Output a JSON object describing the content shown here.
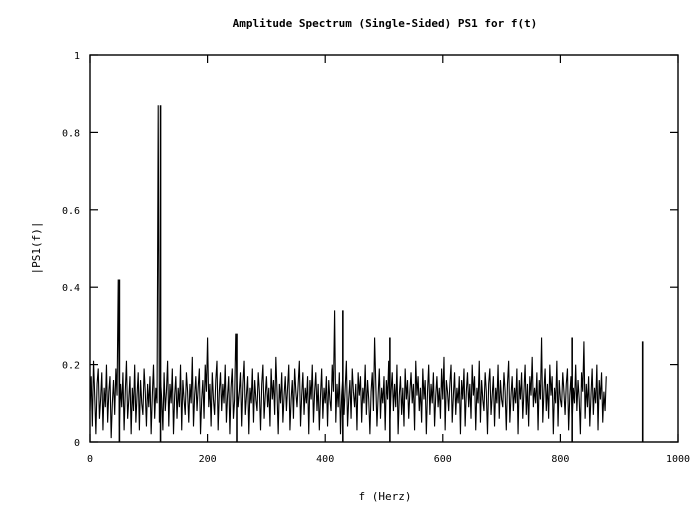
{
  "chart_data": {
    "type": "line",
    "title": "Amplitude Spectrum (Single-Sided) PS1 for f(t)",
    "xlabel": "f (Herz)",
    "ylabel": "|PS1(f)|",
    "xlim": [
      0,
      1000
    ],
    "ylim": [
      0,
      1
    ],
    "xticks": [
      0,
      200,
      400,
      600,
      800,
      1000
    ],
    "yticks": [
      0,
      0.2,
      0.4,
      0.6,
      0.8,
      1
    ],
    "xtick_labels": [
      "0",
      "200",
      "400",
      "600",
      "800",
      "1000"
    ],
    "ytick_labels": [
      "0",
      "0.2",
      "0.4",
      "0.6",
      "0.8",
      "1"
    ],
    "grid": false,
    "legend": "none",
    "series": [
      {
        "x_start": 0,
        "x_step": 2,
        "peaks": [
          {
            "x": 50,
            "y": 0.42
          },
          {
            "x": 120,
            "y": 0.87
          },
          {
            "x": 250,
            "y": 0.28
          },
          {
            "x": 430,
            "y": 0.34
          },
          {
            "x": 510,
            "y": 0.27
          },
          {
            "x": 820,
            "y": 0.27
          },
          {
            "x": 940,
            "y": 0.26
          }
        ],
        "values": [
          0.08,
          0.17,
          0.04,
          0.21,
          0.12,
          0.02,
          0.15,
          0.19,
          0.06,
          0.11,
          0.18,
          0.03,
          0.14,
          0.09,
          0.2,
          0.05,
          0.13,
          0.17,
          0.01,
          0.1,
          0.16,
          0.07,
          0.19,
          0.12,
          0.42,
          0.04,
          0.15,
          0.09,
          0.18,
          0.03,
          0.13,
          0.21,
          0.06,
          0.11,
          0.17,
          0.02,
          0.14,
          0.08,
          0.2,
          0.05,
          0.12,
          0.18,
          0.03,
          0.16,
          0.1,
          0.07,
          0.19,
          0.13,
          0.04,
          0.15,
          0.09,
          0.17,
          0.02,
          0.12,
          0.2,
          0.06,
          0.14,
          0.1,
          0.87,
          0.05,
          0.16,
          0.11,
          0.03,
          0.18,
          0.08,
          0.13,
          0.21,
          0.04,
          0.15,
          0.1,
          0.19,
          0.02,
          0.12,
          0.17,
          0.06,
          0.14,
          0.09,
          0.2,
          0.03,
          0.16,
          0.11,
          0.07,
          0.18,
          0.13,
          0.05,
          0.15,
          0.1,
          0.22,
          0.04,
          0.12,
          0.17,
          0.08,
          0.14,
          0.19,
          0.02,
          0.11,
          0.16,
          0.06,
          0.2,
          0.13,
          0.27,
          0.09,
          0.15,
          0.04,
          0.18,
          0.11,
          0.07,
          0.16,
          0.21,
          0.03,
          0.13,
          0.18,
          0.08,
          0.15,
          0.1,
          0.2,
          0.05,
          0.12,
          0.17,
          0.02,
          0.14,
          0.19,
          0.06,
          0.11,
          0.28,
          0.16,
          0.09,
          0.13,
          0.18,
          0.04,
          0.15,
          0.21,
          0.07,
          0.12,
          0.17,
          0.02,
          0.14,
          0.1,
          0.19,
          0.05,
          0.16,
          0.11,
          0.08,
          0.18,
          0.13,
          0.03,
          0.15,
          0.2,
          0.06,
          0.12,
          0.17,
          0.09,
          0.14,
          0.04,
          0.19,
          0.11,
          0.16,
          0.07,
          0.22,
          0.13,
          0.02,
          0.15,
          0.1,
          0.18,
          0.05,
          0.12,
          0.17,
          0.08,
          0.14,
          0.2,
          0.03,
          0.11,
          0.16,
          0.06,
          0.19,
          0.13,
          0.09,
          0.15,
          0.21,
          0.04,
          0.12,
          0.18,
          0.07,
          0.14,
          0.1,
          0.17,
          0.02,
          0.16,
          0.11,
          0.2,
          0.05,
          0.13,
          0.18,
          0.08,
          0.15,
          0.03,
          0.12,
          0.19,
          0.06,
          0.14,
          0.1,
          0.17,
          0.04,
          0.16,
          0.11,
          0.08,
          0.2,
          0.13,
          0.34,
          0.05,
          0.15,
          0.09,
          0.18,
          0.02,
          0.12,
          0.17,
          0.07,
          0.14,
          0.21,
          0.04,
          0.11,
          0.16,
          0.06,
          0.19,
          0.13,
          0.09,
          0.15,
          0.03,
          0.18,
          0.12,
          0.17,
          0.05,
          0.14,
          0.1,
          0.2,
          0.07,
          0.16,
          0.11,
          0.02,
          0.13,
          0.18,
          0.08,
          0.27,
          0.15,
          0.04,
          0.12,
          0.19,
          0.06,
          0.14,
          0.1,
          0.17,
          0.03,
          0.16,
          0.11,
          0.21,
          0.05,
          0.13,
          0.18,
          0.08,
          0.15,
          0.09,
          0.2,
          0.02,
          0.12,
          0.17,
          0.07,
          0.14,
          0.04,
          0.19,
          0.11,
          0.16,
          0.06,
          0.13,
          0.18,
          0.1,
          0.15,
          0.03,
          0.21,
          0.12,
          0.17,
          0.08,
          0.14,
          0.05,
          0.19,
          0.11,
          0.16,
          0.02,
          0.13,
          0.2,
          0.07,
          0.15,
          0.1,
          0.18,
          0.04,
          0.12,
          0.17,
          0.09,
          0.14,
          0.06,
          0.19,
          0.11,
          0.22,
          0.03,
          0.16,
          0.13,
          0.08,
          0.15,
          0.2,
          0.05,
          0.12,
          0.18,
          0.07,
          0.14,
          0.1,
          0.17,
          0.02,
          0.16,
          0.11,
          0.19,
          0.04,
          0.13,
          0.18,
          0.09,
          0.15,
          0.06,
          0.2,
          0.12,
          0.17,
          0.03,
          0.14,
          0.1,
          0.21,
          0.05,
          0.16,
          0.11,
          0.08,
          0.18,
          0.13,
          0.02,
          0.15,
          0.19,
          0.07,
          0.12,
          0.17,
          0.04,
          0.14,
          0.1,
          0.2,
          0.06,
          0.16,
          0.11,
          0.09,
          0.18,
          0.13,
          0.03,
          0.15,
          0.21,
          0.05,
          0.12,
          0.17,
          0.08,
          0.14,
          0.1,
          0.19,
          0.02,
          0.16,
          0.11,
          0.18,
          0.06,
          0.13,
          0.2,
          0.07,
          0.15,
          0.04,
          0.17,
          0.12,
          0.22,
          0.09,
          0.14,
          0.1,
          0.18,
          0.03,
          0.16,
          0.11,
          0.27,
          0.05,
          0.13,
          0.19,
          0.08,
          0.15,
          0.06,
          0.2,
          0.12,
          0.17,
          0.02,
          0.14,
          0.1,
          0.21,
          0.04,
          0.16,
          0.11,
          0.09,
          0.18,
          0.13,
          0.07,
          0.15,
          0.19,
          0.03,
          0.12,
          0.17,
          0.05,
          0.14,
          0.1,
          0.2,
          0.08,
          0.16,
          0.11,
          0.02,
          0.18,
          0.13,
          0.26,
          0.06,
          0.15,
          0.09,
          0.17,
          0.04,
          0.12,
          0.19,
          0.07,
          0.14,
          0.1,
          0.2,
          0.03,
          0.16,
          0.11,
          0.18,
          0.05,
          0.13,
          0.08,
          0.17
        ]
      }
    ]
  }
}
